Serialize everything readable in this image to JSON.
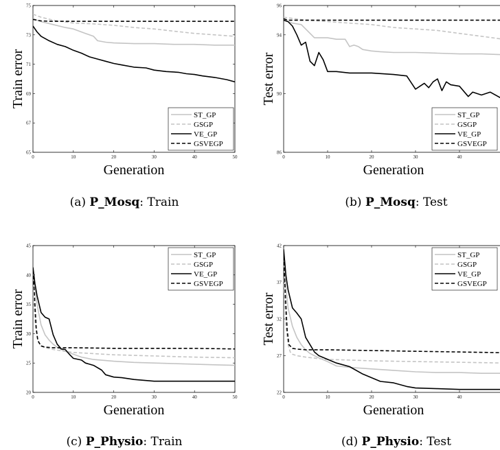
{
  "chart_data": [
    {
      "type": "line",
      "caption": {
        "prefix": "(a) ",
        "dataset": "P_Mosq",
        "suffix": ": Train"
      },
      "xlabel": "Generation",
      "ylabel": "Train error",
      "xlim": [
        0,
        50
      ],
      "ylim": [
        65,
        75
      ],
      "xticks": [
        0,
        10,
        20,
        30,
        40,
        50
      ],
      "yticks": [
        65,
        67,
        69,
        71,
        73,
        75
      ],
      "legend_position": "bottom-right",
      "series": [
        {
          "name": "ST_GP",
          "color": "#c4c4c4",
          "dash": "solid",
          "x": [
            0,
            2,
            5,
            8,
            10,
            13,
            15,
            16,
            18,
            20,
            25,
            30,
            35,
            40,
            45,
            50
          ],
          "y": [
            74.1,
            73.9,
            73.7,
            73.5,
            73.4,
            73.1,
            72.9,
            72.6,
            72.5,
            72.45,
            72.4,
            72.4,
            72.35,
            72.35,
            72.3,
            72.3
          ]
        },
        {
          "name": "GSGP",
          "color": "#c4c4c4",
          "dash": "dashed",
          "x": [
            0,
            2,
            5,
            10,
            15,
            20,
            25,
            30,
            35,
            40,
            45,
            50
          ],
          "y": [
            74.4,
            74.2,
            74.0,
            73.8,
            73.75,
            73.65,
            73.5,
            73.4,
            73.25,
            73.1,
            73.0,
            72.9
          ]
        },
        {
          "name": "VE_GP",
          "color": "#000000",
          "dash": "solid",
          "x": [
            0,
            1,
            2,
            4,
            6,
            8,
            10,
            12,
            14,
            16,
            18,
            20,
            22,
            25,
            28,
            30,
            33,
            36,
            38,
            40,
            42,
            45,
            48,
            50
          ],
          "y": [
            73.6,
            73.2,
            72.9,
            72.6,
            72.35,
            72.2,
            71.95,
            71.75,
            71.5,
            71.35,
            71.2,
            71.05,
            70.95,
            70.8,
            70.75,
            70.6,
            70.5,
            70.45,
            70.35,
            70.3,
            70.2,
            70.1,
            69.95,
            69.8
          ]
        },
        {
          "name": "GSVEGP",
          "color": "#000000",
          "dash": "dashed",
          "x": [
            0,
            1,
            2,
            5,
            10,
            20,
            30,
            40,
            50
          ],
          "y": [
            74.05,
            74.0,
            73.95,
            73.92,
            73.92,
            73.92,
            73.92,
            73.92,
            73.92
          ]
        }
      ]
    },
    {
      "type": "line",
      "caption": {
        "prefix": "(b) ",
        "dataset": "P_Mosq",
        "suffix": ": Test"
      },
      "xlabel": "Generation",
      "ylabel": "Test error",
      "xlim": [
        0,
        50
      ],
      "ylim": [
        86,
        96
      ],
      "xticks": [
        0,
        10,
        20,
        30,
        40,
        50
      ],
      "yticks": [
        86,
        90,
        94,
        96
      ],
      "legend_position": "bottom-right",
      "series": [
        {
          "name": "ST_GP",
          "color": "#c4c4c4",
          "dash": "solid",
          "x": [
            0,
            2,
            4,
            5,
            7,
            10,
            12,
            14,
            15,
            16,
            17,
            18,
            20,
            22,
            25,
            30,
            35,
            40,
            45,
            50
          ],
          "y": [
            95.0,
            94.8,
            94.7,
            94.4,
            93.8,
            93.8,
            93.7,
            93.7,
            93.2,
            93.3,
            93.2,
            93.0,
            92.9,
            92.85,
            92.8,
            92.8,
            92.75,
            92.7,
            92.7,
            92.65
          ]
        },
        {
          "name": "GSGP",
          "color": "#c4c4c4",
          "dash": "dashed",
          "x": [
            0,
            5,
            10,
            15,
            20,
            25,
            30,
            35,
            40,
            45,
            50
          ],
          "y": [
            95.2,
            95.0,
            94.9,
            94.8,
            94.7,
            94.5,
            94.4,
            94.3,
            94.1,
            93.9,
            93.7
          ]
        },
        {
          "name": "VE_GP",
          "color": "#000000",
          "dash": "solid",
          "x": [
            0,
            1,
            2,
            3,
            4,
            5,
            6,
            7,
            8,
            9,
            10,
            12,
            15,
            20,
            25,
            28,
            30,
            31,
            32,
            33,
            34,
            35,
            36,
            37,
            38,
            40,
            42,
            43,
            45,
            47,
            50
          ],
          "y": [
            95.0,
            94.9,
            94.6,
            94.0,
            93.3,
            93.5,
            92.2,
            91.9,
            92.8,
            92.3,
            91.5,
            91.5,
            91.4,
            91.4,
            91.3,
            91.2,
            90.3,
            90.5,
            90.7,
            90.4,
            90.8,
            91.0,
            90.2,
            90.8,
            90.6,
            90.5,
            89.8,
            90.1,
            89.9,
            90.1,
            89.6
          ]
        },
        {
          "name": "GSVEGP",
          "color": "#000000",
          "dash": "dashed",
          "x": [
            0,
            1,
            5,
            10,
            20,
            30,
            40,
            50
          ],
          "y": [
            95.1,
            95.0,
            95.0,
            95.0,
            95.0,
            95.0,
            95.0,
            95.0
          ]
        }
      ]
    },
    {
      "type": "line",
      "caption": {
        "prefix": "(c) ",
        "dataset": "P_Physio",
        "suffix": ": Train"
      },
      "xlabel": "Generation",
      "ylabel": "Train error",
      "xlim": [
        0,
        50
      ],
      "ylim": [
        20,
        45
      ],
      "xticks": [
        0,
        10,
        20,
        30,
        40,
        50
      ],
      "yticks": [
        20,
        25,
        30,
        35,
        40,
        45
      ],
      "legend_position": "top-right",
      "series": [
        {
          "name": "ST_GP",
          "color": "#c4c4c4",
          "dash": "solid",
          "x": [
            0,
            1,
            2,
            3,
            4,
            5,
            6,
            7,
            8,
            10,
            12,
            15,
            20,
            25,
            30,
            35,
            40,
            45,
            50
          ],
          "y": [
            40.5,
            35.0,
            31.5,
            29.8,
            28.9,
            28.2,
            27.7,
            27.3,
            27.0,
            26.5,
            26.0,
            25.6,
            25.3,
            25.1,
            25.0,
            24.9,
            24.8,
            24.7,
            24.6
          ]
        },
        {
          "name": "GSGP",
          "color": "#c4c4c4",
          "dash": "dashed",
          "x": [
            0,
            0.5,
            1,
            1.5,
            2,
            3,
            5,
            8,
            10,
            15,
            20,
            30,
            40,
            50
          ],
          "y": [
            38.0,
            32.0,
            29.5,
            28.5,
            28.0,
            27.6,
            27.3,
            27.0,
            26.8,
            26.6,
            26.4,
            26.2,
            26.0,
            25.9
          ]
        },
        {
          "name": "VE_GP",
          "color": "#000000",
          "dash": "solid",
          "x": [
            0,
            0.5,
            1,
            2,
            3,
            4,
            5,
            6,
            7,
            8,
            9,
            10,
            12,
            13,
            15,
            17,
            18,
            20,
            22,
            25,
            30,
            35,
            40,
            45,
            50
          ],
          "y": [
            41.3,
            38.5,
            36.5,
            33.6,
            32.8,
            32.5,
            29.8,
            28.2,
            27.4,
            27.3,
            26.5,
            25.8,
            25.5,
            25.0,
            24.6,
            23.8,
            23.0,
            22.6,
            22.5,
            22.2,
            21.9,
            21.9,
            21.9,
            21.9,
            21.9
          ]
        },
        {
          "name": "GSVEGP",
          "color": "#000000",
          "dash": "dashed",
          "x": [
            0,
            0.4,
            0.8,
            1.2,
            2,
            3,
            5,
            10,
            20,
            30,
            40,
            50
          ],
          "y": [
            40.8,
            36.0,
            31.0,
            28.8,
            27.9,
            27.7,
            27.6,
            27.6,
            27.5,
            27.5,
            27.5,
            27.4
          ]
        }
      ]
    },
    {
      "type": "line",
      "caption": {
        "prefix": "(d) ",
        "dataset": "P_Physio",
        "suffix": ": Test"
      },
      "xlabel": "Generation",
      "ylabel": "Test error",
      "xlim": [
        0,
        50
      ],
      "ylim": [
        22,
        42
      ],
      "xticks": [
        0,
        10,
        20,
        30,
        40,
        50
      ],
      "yticks": [
        22,
        27,
        32,
        37,
        42
      ],
      "legend_position": "top-right",
      "series": [
        {
          "name": "ST_GP",
          "color": "#c4c4c4",
          "dash": "solid",
          "x": [
            0,
            1,
            2,
            3,
            4,
            5,
            6,
            7,
            8,
            10,
            12,
            15,
            20,
            25,
            30,
            35,
            40,
            45,
            50
          ],
          "y": [
            39.5,
            33.5,
            31.0,
            29.5,
            28.5,
            27.8,
            27.3,
            27.0,
            26.7,
            26.2,
            25.6,
            25.4,
            25.2,
            25.0,
            24.8,
            24.7,
            24.7,
            24.6,
            24.6
          ]
        },
        {
          "name": "GSGP",
          "color": "#c4c4c4",
          "dash": "dashed",
          "x": [
            0,
            0.5,
            1,
            1.5,
            2,
            3,
            5,
            8,
            10,
            15,
            20,
            30,
            40,
            50
          ],
          "y": [
            37.5,
            31.0,
            28.5,
            27.5,
            27.2,
            27.0,
            26.8,
            26.6,
            26.5,
            26.4,
            26.3,
            26.2,
            26.1,
            26.0
          ]
        },
        {
          "name": "VE_GP",
          "color": "#000000",
          "dash": "solid",
          "x": [
            0,
            0.5,
            1,
            2,
            3,
            4,
            5,
            6,
            7,
            8,
            10,
            12,
            15,
            18,
            20,
            22,
            25,
            28,
            30,
            35,
            40,
            45,
            50
          ],
          "y": [
            41.5,
            38.0,
            36.0,
            33.5,
            32.8,
            32.0,
            29.5,
            28.5,
            27.5,
            27.0,
            26.5,
            26.0,
            25.5,
            24.5,
            24.0,
            23.5,
            23.3,
            22.8,
            22.6,
            22.5,
            22.4,
            22.4,
            22.4
          ]
        },
        {
          "name": "GSVEGP",
          "color": "#000000",
          "dash": "dashed",
          "x": [
            0,
            0.4,
            0.8,
            1.2,
            2,
            3,
            5,
            10,
            20,
            30,
            40,
            50
          ],
          "y": [
            40.5,
            35.0,
            30.5,
            28.5,
            28.0,
            27.9,
            27.8,
            27.8,
            27.7,
            27.6,
            27.5,
            27.4
          ]
        }
      ]
    }
  ]
}
